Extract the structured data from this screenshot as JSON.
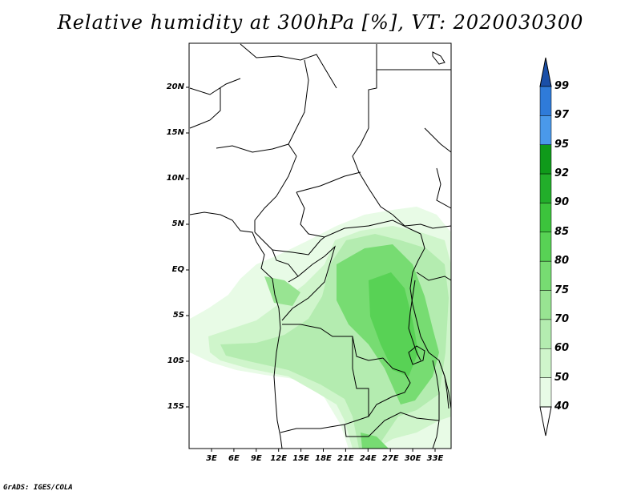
{
  "title": "Relative humidity at 300hPa [%], VT: 2020030300",
  "credit": "GrADS: IGES/COLA",
  "map": {
    "lat_ticks": [
      {
        "label": "20N",
        "value": 20
      },
      {
        "label": "15N",
        "value": 15
      },
      {
        "label": "10N",
        "value": 10
      },
      {
        "label": "5N",
        "value": 5
      },
      {
        "label": "EQ",
        "value": 0
      },
      {
        "label": "5S",
        "value": -5
      },
      {
        "label": "10S",
        "value": -10
      },
      {
        "label": "15S",
        "value": -15
      }
    ],
    "lon_ticks": [
      {
        "label": "3E",
        "value": 3
      },
      {
        "label": "6E",
        "value": 6
      },
      {
        "label": "9E",
        "value": 9
      },
      {
        "label": "12E",
        "value": 12
      },
      {
        "label": "15E",
        "value": 15
      },
      {
        "label": "18E",
        "value": 18
      },
      {
        "label": "21E",
        "value": 21
      },
      {
        "label": "24E",
        "value": 24
      },
      {
        "label": "27E",
        "value": 27
      },
      {
        "label": "30E",
        "value": 30
      },
      {
        "label": "33E",
        "value": 33
      }
    ]
  },
  "colorbar": {
    "levels": [
      {
        "label": "99",
        "color": "#1f61c4"
      },
      {
        "label": "97",
        "color": "#2f7bd9"
      },
      {
        "label": "95",
        "color": "#4a99ea"
      },
      {
        "label": "92",
        "color": "#0f9a1a"
      },
      {
        "label": "90",
        "color": "#22ae2a"
      },
      {
        "label": "85",
        "color": "#3cc43c"
      },
      {
        "label": "80",
        "color": "#58d255"
      },
      {
        "label": "75",
        "color": "#77dc72"
      },
      {
        "label": "70",
        "color": "#98e492"
      },
      {
        "label": "60",
        "color": "#b4ecb0"
      },
      {
        "label": "50",
        "color": "#cff5cb"
      },
      {
        "label": "40",
        "color": "#e8fbe6"
      }
    ],
    "top_arrow_color": "#1a4fa8",
    "bottom_arrow_color": "#ffffff"
  }
}
